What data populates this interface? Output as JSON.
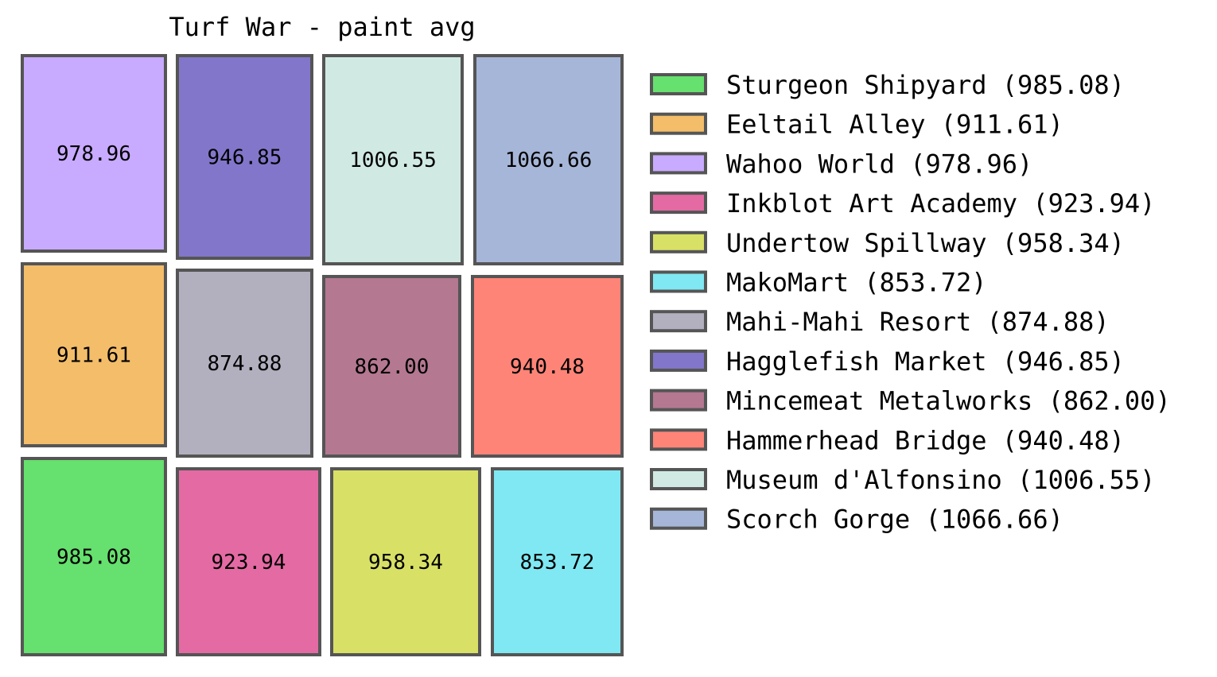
{
  "chart_data": {
    "type": "treemap",
    "title": "Turf War - paint avg",
    "items": [
      {
        "name": "Sturgeon Shipyard",
        "value": 985.08,
        "color": "#66e06e"
      },
      {
        "name": "Eeltail Alley",
        "value": 911.61,
        "color": "#f3bd6a"
      },
      {
        "name": "Wahoo World",
        "value": 978.96,
        "color": "#c8aaff"
      },
      {
        "name": "Inkblot Art Academy",
        "value": 923.94,
        "color": "#e46aa4"
      },
      {
        "name": "Undertow Spillway",
        "value": 958.34,
        "color": "#d8e066"
      },
      {
        "name": "MakoMart",
        "value": 853.72,
        "color": "#80e8f2"
      },
      {
        "name": "Mahi-Mahi Resort",
        "value": 874.88,
        "color": "#b2b0bf"
      },
      {
        "name": "Hagglefish Market",
        "value": 946.85,
        "color": "#8276cb"
      },
      {
        "name": "Mincemeat Metalworks",
        "value": 862.0,
        "color": "#b47890"
      },
      {
        "name": "Hammerhead Bridge",
        "value": 940.48,
        "color": "#fe8478"
      },
      {
        "name": "Museum d'Alfonsino",
        "value": 1006.55,
        "color": "#d0e9e3"
      },
      {
        "name": "Scorch Gorge",
        "value": 1066.66,
        "color": "#a6b6d8"
      }
    ],
    "legend": {
      "position": "right",
      "entries": [
        "Sturgeon Shipyard (985.08)",
        "Eeltail Alley (911.61)",
        "Wahoo World (978.96)",
        "Inkblot Art Academy (923.94)",
        "Undertow Spillway (958.34)",
        "MakoMart (853.72)",
        "Mahi-Mahi Resort (874.88)",
        "Hagglefish Market (946.85)",
        "Mincemeat Metalworks (862.00)",
        "Hammerhead Bridge (940.48)",
        "Museum d'Alfonsino (1006.55)",
        "Scorch Gorge (1066.66)"
      ]
    },
    "cell_labels": {
      "Sturgeon Shipyard": "985.08",
      "Eeltail Alley": "911.61",
      "Wahoo World": "978.96",
      "Inkblot Art Academy": "923.94",
      "Undertow Spillway": "958.34",
      "MakoMart": "853.72",
      "Mahi-Mahi Resort": "874.88",
      "Hagglefish Market": "946.85",
      "Mincemeat Metalworks": "862.00",
      "Hammerhead Bridge": "940.48",
      "Museum d'Alfonsino": "1006.55",
      "Scorch Gorge": "1066.66"
    },
    "edge_color": "#555555"
  }
}
